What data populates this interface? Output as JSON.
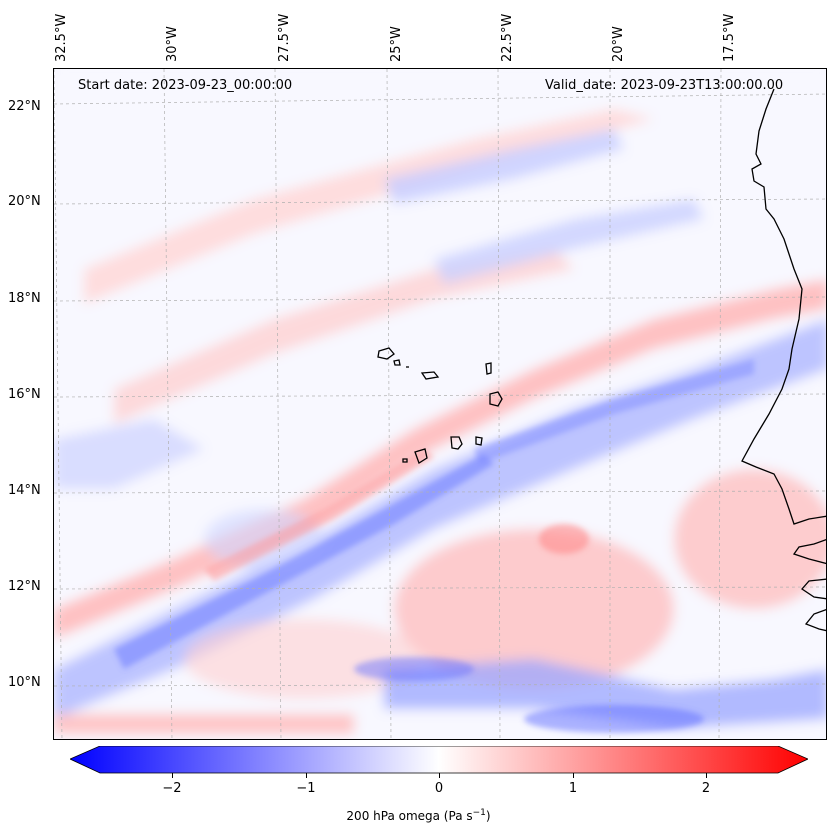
{
  "header": {
    "start_date": "Start date: 2023-09-23_00:00:00",
    "valid_date": "Valid_date: 2023-09-23T13:00:00.00"
  },
  "axes": {
    "lon_labels": [
      "32.5°W",
      "30°W",
      "27.5°W",
      "25°W",
      "22.5°W",
      "20°W",
      "17.5°W"
    ],
    "lat_labels": [
      "22°N",
      "20°N",
      "18°N",
      "16°N",
      "14°N",
      "12°N",
      "10°N"
    ]
  },
  "colorbar": {
    "ticks": [
      "−2",
      "−1",
      "0",
      "1",
      "2"
    ],
    "label_main": "200 hPa omega (Pa s",
    "label_sup": "−1",
    "label_end": ")",
    "colors": {
      "negative": "#0000ff",
      "zero": "#ffffff",
      "positive": "#ff0000"
    },
    "range": [
      -2.6,
      2.6
    ]
  },
  "map": {
    "colors": {
      "coastline": "#000000",
      "gridline": "#b0b0b0"
    }
  }
}
